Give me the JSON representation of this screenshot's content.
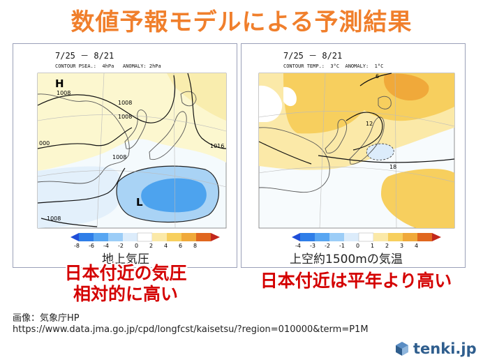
{
  "title": "数値予報モデルによる予測結果",
  "left_panel": {
    "date": "7/25 － 8/21",
    "subtitle": "CONTOUR PSEA.:  4hPa   ANOMALY: 2hPa",
    "high_label": "H",
    "low_label": "L",
    "contour_labels": [
      "1008",
      "1008",
      "1008",
      "1008",
      "1008",
      "1016",
      "000"
    ],
    "colorbar_ticks": [
      "-8",
      "-6",
      "-4",
      "-2",
      "0",
      "2",
      "4",
      "6",
      "8"
    ],
    "colorbar_colors": [
      "#1f4ed8",
      "#2f7ee8",
      "#58a6f2",
      "#9ccdf7",
      "#dcecfb",
      "#ffffff",
      "#fbe9a8",
      "#f7cf5e",
      "#f0a93a",
      "#e0671f",
      "#c1271c"
    ],
    "caption": "地上気圧",
    "note_lines": [
      "日本付近の気圧",
      "相対的に高い"
    ]
  },
  "right_panel": {
    "date": "7/25 － 8/21",
    "subtitle": "CONTOUR TEMP.:  3°C  ANOMALY:  1°C",
    "contour_labels": [
      "6",
      "12",
      "18"
    ],
    "colorbar_ticks": [
      "-4",
      "-3",
      "-2",
      "-1",
      "0",
      "1",
      "2",
      "3",
      "4"
    ],
    "colorbar_colors": [
      "#1f4ed8",
      "#2f7ee8",
      "#58a6f2",
      "#9ccdf7",
      "#dcecfb",
      "#ffffff",
      "#fbe9a8",
      "#f7cf5e",
      "#f0a93a",
      "#e0671f",
      "#c1271c"
    ],
    "caption": "上空約1500mの気温",
    "note": "日本付近は平年より高い"
  },
  "credit": {
    "source": "画像：気象庁HP",
    "url": "https://www.data.jma.go.jp/cpd/longfcst/kaisetsu/?region=010000&term=P1M"
  },
  "logo": {
    "icon": "tenki-cube-icon",
    "text": "tenki.jp"
  }
}
